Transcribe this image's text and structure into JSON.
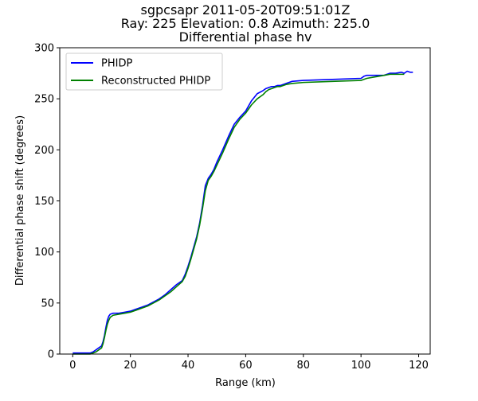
{
  "chart_data": {
    "type": "line",
    "title": {
      "line1": "sgpcsapr 2011-05-20T09:51:01Z",
      "line2": "Ray: 225  Elevation: 0.8 Azimuth: 225.0",
      "line3": "Differential phase hv"
    },
    "xlabel": "Range (km)",
    "ylabel": "Differential phase shift (degrees)",
    "xlim": [
      -4.5,
      124
    ],
    "ylim": [
      0,
      300
    ],
    "xticks": [
      0,
      20,
      40,
      60,
      80,
      100,
      120
    ],
    "yticks": [
      0,
      50,
      100,
      150,
      200,
      250,
      300
    ],
    "legend_position": "upper-left",
    "grid": false,
    "series": [
      {
        "name": "PHIDP",
        "color": "#0000ff",
        "x": [
          0,
          2,
          4,
          6,
          7,
          8,
          9,
          10,
          10.5,
          11,
          11.5,
          12,
          12.5,
          13,
          14,
          16,
          18,
          20,
          22,
          24,
          26,
          28,
          30,
          32,
          34,
          36,
          38,
          39,
          40,
          41,
          42,
          43,
          44,
          45,
          46,
          47,
          48,
          49,
          50,
          52,
          54,
          56,
          58,
          60,
          62,
          64,
          66,
          67,
          68,
          69,
          70,
          71,
          72,
          74,
          76,
          80,
          90,
          100,
          101,
          102,
          104,
          106,
          108,
          110,
          112,
          114,
          115,
          116,
          117,
          118
        ],
        "y": [
          1,
          1,
          1,
          1,
          2,
          4,
          6,
          8,
          12,
          18,
          26,
          33,
          37,
          39,
          40,
          40,
          41,
          42,
          44,
          46,
          48,
          51,
          54,
          58,
          63,
          68,
          72,
          78,
          86,
          95,
          105,
          115,
          128,
          145,
          165,
          172,
          176,
          181,
          188,
          200,
          213,
          225,
          232,
          238,
          248,
          255,
          258,
          260,
          261,
          262,
          262,
          263,
          263,
          265,
          267,
          268,
          269,
          270,
          272,
          273,
          273,
          273,
          273,
          275,
          275,
          276,
          275,
          277,
          276,
          276
        ]
      },
      {
        "name": "Reconstructed PHIDP",
        "color": "#008000",
        "x": [
          0,
          2,
          4,
          6,
          7,
          8,
          9,
          10,
          10.5,
          11,
          11.5,
          12,
          12.5,
          13,
          14,
          16,
          18,
          20,
          22,
          24,
          26,
          28,
          30,
          32,
          34,
          36,
          38,
          39,
          40,
          41,
          42,
          43,
          44,
          45,
          46,
          47,
          48,
          49,
          50,
          52,
          54,
          56,
          58,
          60,
          62,
          64,
          66,
          67,
          68,
          69,
          70,
          71,
          72,
          74,
          76,
          80,
          90,
          100,
          101,
          102,
          104,
          106,
          108,
          110,
          112,
          114,
          115
        ],
        "y": [
          0,
          0,
          0,
          0,
          1,
          2,
          4,
          6,
          10,
          16,
          23,
          29,
          33,
          36,
          38,
          39,
          40,
          41,
          43,
          45,
          47,
          50,
          53,
          57,
          61,
          66,
          71,
          76,
          84,
          93,
          103,
          113,
          126,
          142,
          160,
          170,
          174,
          179,
          185,
          197,
          210,
          222,
          230,
          236,
          244,
          250,
          254,
          257,
          259,
          260,
          261,
          262,
          262,
          264,
          265,
          266,
          267,
          268,
          269,
          270,
          271,
          272,
          273,
          274,
          274,
          274,
          274
        ]
      }
    ]
  }
}
